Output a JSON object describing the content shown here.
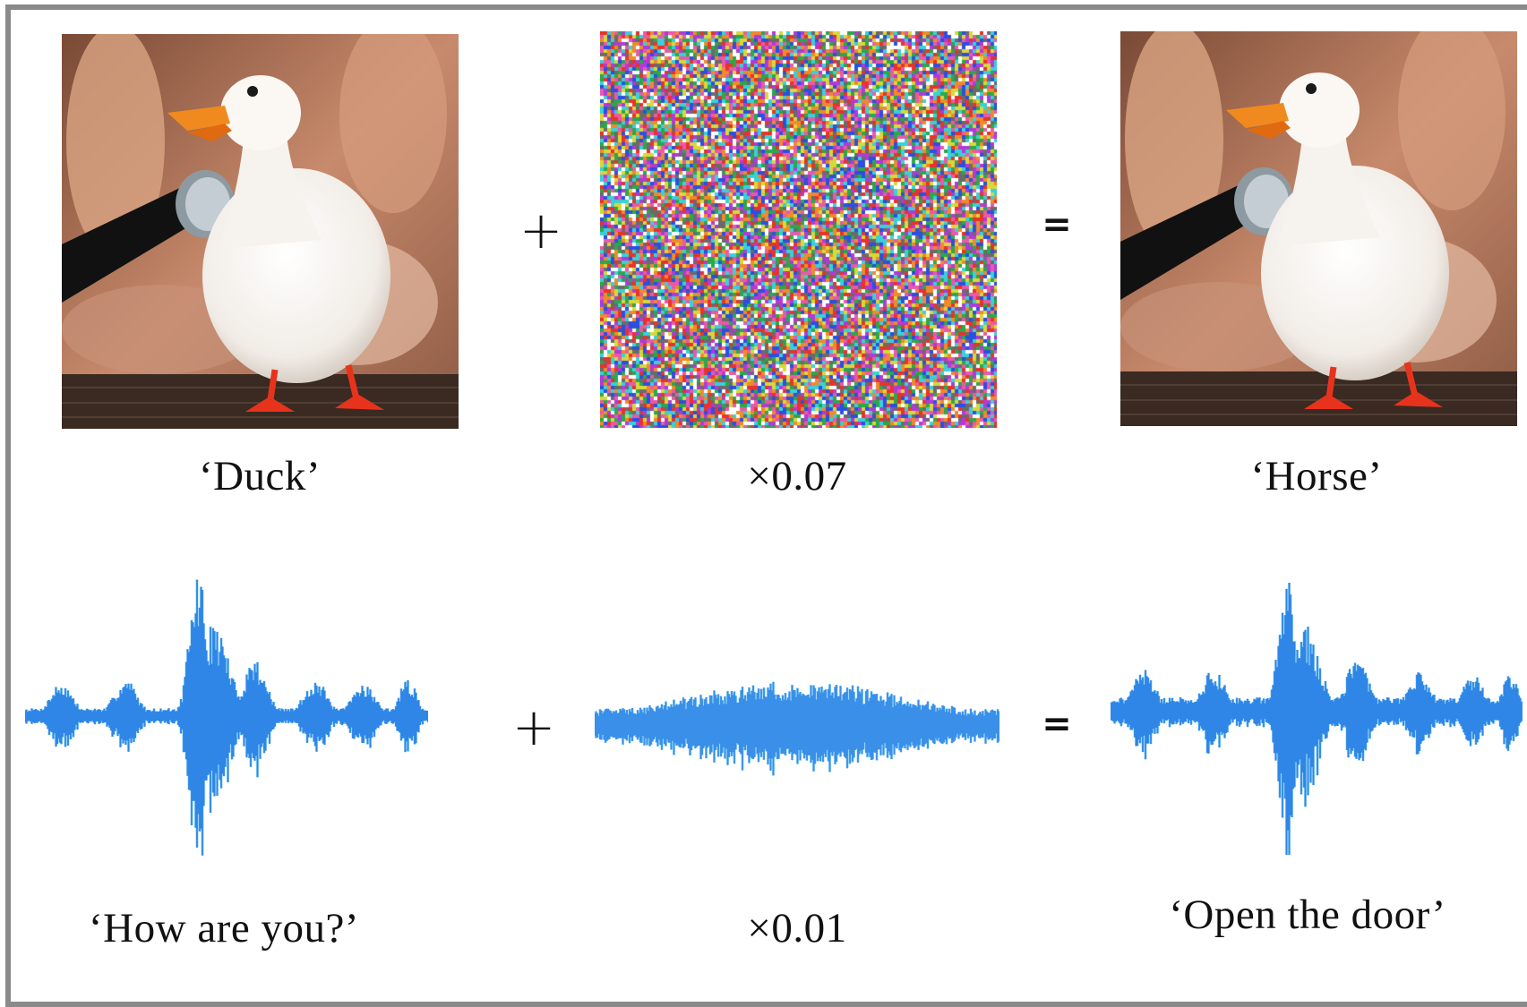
{
  "image_row": {
    "original": {
      "label": "‘Duck’"
    },
    "perturbation": {
      "label": "×0.07"
    },
    "adversarial": {
      "label": "‘Horse’"
    }
  },
  "audio_row": {
    "original": {
      "label": "‘How are you?’"
    },
    "perturbation": {
      "label": "×0.01"
    },
    "adversarial": {
      "label": "‘Open the door’"
    }
  },
  "operators": {
    "plus": "+",
    "equals": "="
  },
  "colors": {
    "waveform": "#2f86e6",
    "waveform_light": "#5ab8f2",
    "noise_waveform": "#3a8fe8",
    "frame": "#8a8a8a"
  }
}
